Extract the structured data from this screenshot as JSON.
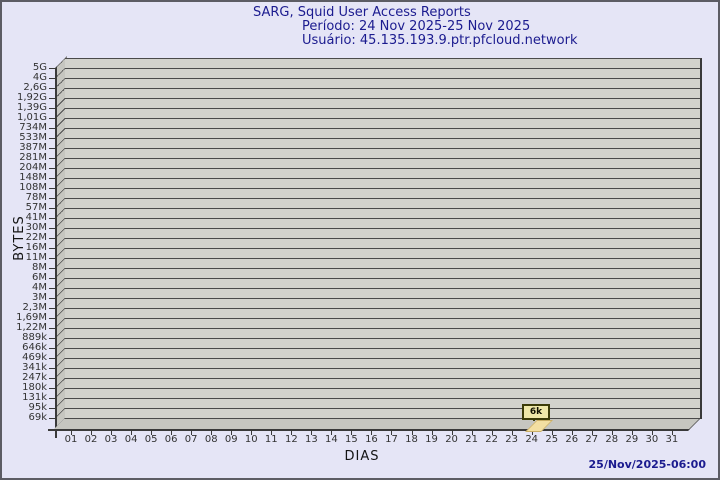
{
  "header": {
    "title": "SARG, Squid User Access Reports",
    "period_label": "Período: 24 Nov 2025-25 Nov 2025",
    "user_label": "Usuário: 45.135.193.9.ptr.pfcloud.network"
  },
  "footer": {
    "generated": "25/Nov/2025-06:00"
  },
  "chart_data": {
    "type": "bar",
    "title": "SARG, Squid User Access Reports",
    "subtitle_period": "Período: 24 Nov 2025-25 Nov 2025",
    "subtitle_user": "Usuário: 45.135.193.9.ptr.pfcloud.network",
    "xlabel": "DIAS",
    "ylabel": "BYTES",
    "y_scale": "log",
    "y_range": [
      "69k",
      "5G"
    ],
    "y_tick_labels": [
      "5G",
      "4G",
      "2,6G",
      "1,92G",
      "1,39G",
      "1,01G",
      "734M",
      "533M",
      "387M",
      "281M",
      "204M",
      "148M",
      "108M",
      "78M",
      "57M",
      "41M",
      "30M",
      "22M",
      "16M",
      "11M",
      "8M",
      "6M",
      "4M",
      "3M",
      "2,3M",
      "1,69M",
      "1,22M",
      "889k",
      "646k",
      "469k",
      "341k",
      "247k",
      "180k",
      "131k",
      "95k",
      "69k"
    ],
    "x_tick_labels": [
      "01",
      "02",
      "03",
      "04",
      "05",
      "06",
      "07",
      "08",
      "09",
      "10",
      "11",
      "12",
      "13",
      "14",
      "15",
      "16",
      "17",
      "18",
      "19",
      "20",
      "21",
      "22",
      "23",
      "24",
      "25",
      "26",
      "27",
      "28",
      "29",
      "30",
      "31"
    ],
    "grid": "horizontal",
    "legend": "none",
    "series": [
      {
        "name": "daily-bytes",
        "points": [
          {
            "x": "24",
            "label": "6k",
            "value_bytes": 6000
          }
        ]
      }
    ],
    "colors": {
      "background": "#e5e5f6",
      "title_text": "#1b1b8f",
      "wall_band": "#d2d2cc",
      "grid_line": "#4a4a4a",
      "side_wall": "#c6c6c0",
      "axis_text": "#323232",
      "marker_fill": "#efe8a8",
      "marker_border": "#3c3c08",
      "bar_fill": "#f3dfa2",
      "timestamp_text": "#1b1b8f"
    }
  }
}
